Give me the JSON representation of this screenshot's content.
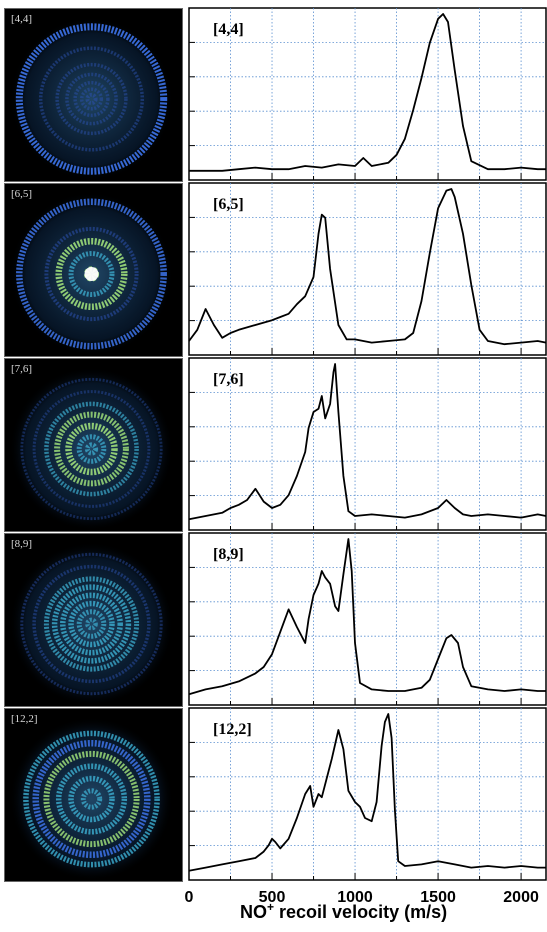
{
  "chart_data": {
    "type": "line",
    "xlabel_main": "NO",
    "xlabel_sup": "+",
    "xlabel_rest": " recoil velocity (m/s)",
    "xlim": [
      0,
      2150
    ],
    "x_ticks": [
      0,
      500,
      1000,
      1500,
      2000
    ],
    "grid": true,
    "panels": [
      {
        "label": "[4,4]",
        "ring_radii": [
          0.05,
          0.12,
          0.2,
          0.3,
          0.42,
          0.62,
          0.88
        ],
        "ring_strength": [
          0.4,
          0.3,
          0.3,
          0.3,
          0.3,
          0.3,
          1.0
        ],
        "x": [
          0,
          100,
          200,
          300,
          400,
          500,
          600,
          700,
          800,
          900,
          1000,
          1050,
          1100,
          1200,
          1250,
          1300,
          1350,
          1400,
          1450,
          1500,
          1530,
          1560,
          1600,
          1650,
          1700,
          1800,
          1900,
          2000,
          2100,
          2150
        ],
        "y": [
          0.02,
          0.02,
          0.02,
          0.03,
          0.04,
          0.03,
          0.03,
          0.05,
          0.04,
          0.06,
          0.05,
          0.1,
          0.05,
          0.07,
          0.12,
          0.22,
          0.4,
          0.6,
          0.82,
          0.97,
          1.0,
          0.95,
          0.65,
          0.3,
          0.08,
          0.03,
          0.03,
          0.04,
          0.03,
          0.03
        ]
      },
      {
        "label": "[6,5]",
        "ring_radii": [
          0.05,
          0.25,
          0.4,
          0.55,
          0.88
        ],
        "ring_strength": [
          1.0,
          0.6,
          0.9,
          0.4,
          0.9
        ],
        "x": [
          0,
          50,
          100,
          150,
          200,
          250,
          300,
          400,
          500,
          550,
          600,
          650,
          700,
          750,
          780,
          800,
          820,
          850,
          900,
          950,
          1000,
          1100,
          1200,
          1300,
          1350,
          1400,
          1450,
          1500,
          1550,
          1580,
          1600,
          1650,
          1700,
          1750,
          1800,
          1900,
          2000,
          2100,
          2150
        ],
        "y": [
          0.05,
          0.12,
          0.25,
          0.15,
          0.07,
          0.1,
          0.12,
          0.15,
          0.18,
          0.2,
          0.22,
          0.28,
          0.33,
          0.45,
          0.72,
          0.84,
          0.82,
          0.5,
          0.15,
          0.06,
          0.06,
          0.04,
          0.05,
          0.06,
          0.1,
          0.3,
          0.6,
          0.88,
          0.99,
          1.0,
          0.95,
          0.72,
          0.4,
          0.12,
          0.05,
          0.03,
          0.04,
          0.05,
          0.04
        ]
      },
      {
        "label": "[7,6]",
        "ring_radii": [
          0.05,
          0.15,
          0.28,
          0.42,
          0.55,
          0.7,
          0.85
        ],
        "ring_strength": [
          0.6,
          0.6,
          0.9,
          0.8,
          0.5,
          0.2,
          0.15
        ],
        "x": [
          0,
          100,
          200,
          250,
          300,
          350,
          400,
          450,
          500,
          550,
          600,
          650,
          700,
          720,
          750,
          780,
          800,
          820,
          850,
          870,
          880,
          900,
          930,
          960,
          1000,
          1100,
          1200,
          1300,
          1400,
          1500,
          1550,
          1600,
          1650,
          1700,
          1800,
          1900,
          2000,
          2100,
          2150
        ],
        "y": [
          0.03,
          0.05,
          0.07,
          0.1,
          0.12,
          0.15,
          0.22,
          0.14,
          0.1,
          0.12,
          0.18,
          0.3,
          0.45,
          0.6,
          0.7,
          0.72,
          0.8,
          0.66,
          0.75,
          0.95,
          1.0,
          0.7,
          0.3,
          0.08,
          0.05,
          0.06,
          0.05,
          0.04,
          0.06,
          0.1,
          0.15,
          0.1,
          0.06,
          0.05,
          0.06,
          0.05,
          0.04,
          0.06,
          0.05
        ]
      },
      {
        "label": "[8,9]",
        "ring_radii": [
          0.05,
          0.15,
          0.25,
          0.35,
          0.45,
          0.55,
          0.7,
          0.85
        ],
        "ring_strength": [
          0.5,
          0.6,
          0.7,
          0.7,
          0.7,
          0.6,
          0.3,
          0.2
        ],
        "x": [
          0,
          100,
          200,
          300,
          400,
          450,
          500,
          550,
          600,
          650,
          700,
          720,
          750,
          780,
          800,
          820,
          850,
          880,
          900,
          930,
          960,
          980,
          1000,
          1030,
          1100,
          1200,
          1300,
          1400,
          1450,
          1500,
          1550,
          1580,
          1620,
          1650,
          1700,
          1800,
          1900,
          2000,
          2100,
          2150
        ],
        "y": [
          0.03,
          0.06,
          0.08,
          0.11,
          0.16,
          0.2,
          0.28,
          0.42,
          0.56,
          0.45,
          0.35,
          0.5,
          0.65,
          0.72,
          0.8,
          0.76,
          0.72,
          0.58,
          0.55,
          0.78,
          1.0,
          0.8,
          0.35,
          0.1,
          0.06,
          0.05,
          0.05,
          0.07,
          0.12,
          0.25,
          0.38,
          0.4,
          0.35,
          0.2,
          0.08,
          0.06,
          0.05,
          0.06,
          0.05,
          0.05
        ]
      },
      {
        "label": "[12,2]",
        "ring_radii": [
          0.1,
          0.25,
          0.4,
          0.55,
          0.68,
          0.8
        ],
        "ring_strength": [
          0.6,
          0.7,
          0.7,
          0.8,
          0.9,
          0.7
        ],
        "x": [
          0,
          100,
          200,
          300,
          400,
          450,
          480,
          500,
          520,
          550,
          600,
          650,
          700,
          730,
          750,
          780,
          800,
          830,
          860,
          900,
          930,
          960,
          1000,
          1030,
          1060,
          1100,
          1130,
          1160,
          1180,
          1200,
          1220,
          1240,
          1260,
          1300,
          1400,
          1500,
          1600,
          1700,
          1800,
          1900,
          2000,
          2100,
          2150
        ],
        "y": [
          0.02,
          0.04,
          0.06,
          0.08,
          0.1,
          0.14,
          0.18,
          0.22,
          0.2,
          0.16,
          0.22,
          0.35,
          0.5,
          0.55,
          0.42,
          0.5,
          0.48,
          0.6,
          0.72,
          0.9,
          0.78,
          0.52,
          0.45,
          0.42,
          0.35,
          0.33,
          0.45,
          0.8,
          0.95,
          1.0,
          0.85,
          0.4,
          0.08,
          0.05,
          0.06,
          0.08,
          0.06,
          0.04,
          0.05,
          0.04,
          0.05,
          0.04,
          0.04
        ]
      }
    ]
  }
}
